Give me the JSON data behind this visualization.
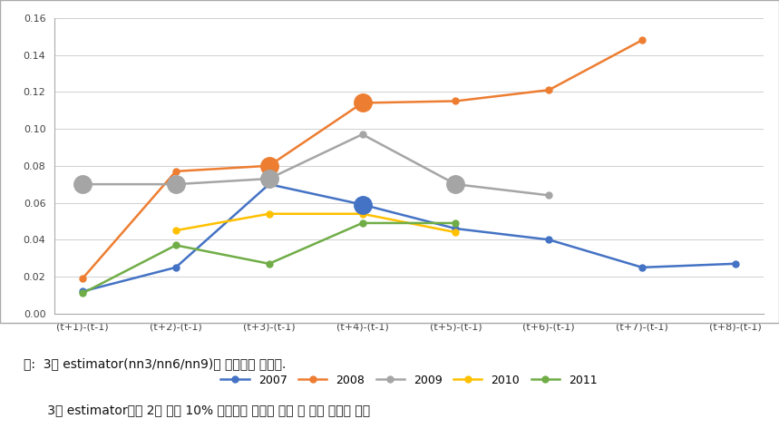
{
  "x_labels": [
    "(t+1)-(t-1)",
    "(t+2)-(t-1)",
    "(t+3)-(t-1)",
    "(t+4)-(t-1)",
    "(t+5)-(t-1)",
    "(t+6)-(t-1)",
    "(t+7)-(t-1)",
    "(t+8)-(t-1)"
  ],
  "series": {
    "2007": {
      "values": [
        0.012,
        0.025,
        0.07,
        0.059,
        0.046,
        0.04,
        0.025,
        0.027
      ],
      "color": "#4472C4",
      "large_markers": [
        3
      ]
    },
    "2008": {
      "values": [
        0.019,
        0.077,
        0.08,
        0.114,
        0.115,
        0.121,
        0.148,
        null
      ],
      "color": "#ED7D31",
      "large_markers": [
        2,
        3
      ]
    },
    "2009": {
      "values": [
        0.07,
        0.07,
        0.073,
        0.097,
        0.07,
        0.064,
        null,
        null
      ],
      "color": "#A5A5A5",
      "large_markers": [
        0,
        1,
        2,
        4
      ]
    },
    "2010": {
      "values": [
        null,
        0.045,
        0.054,
        0.054,
        0.044,
        null,
        null,
        null
      ],
      "color": "#FFC000",
      "large_markers": []
    },
    "2011": {
      "values": [
        0.011,
        0.037,
        0.027,
        0.049,
        0.049,
        null,
        null,
        null
      ],
      "color": "#70AD47",
      "large_markers": []
    }
  },
  "ylim": [
    0,
    0.16
  ],
  "yticks": [
    0,
    0.02,
    0.04,
    0.06,
    0.08,
    0.1,
    0.12,
    0.14,
    0.16
  ],
  "legend_order": [
    "2007",
    "2008",
    "2009",
    "2010",
    "2011"
  ],
  "note_line1": "주:  3개 estimator(nn3/nn6/nn9)의 평균치를 나타냄.",
  "note_line2": "      3개 estimator에서 2개 이상 10% 수준에서 유의할 경우 큰 원형 점으로 표시",
  "background_color": "#FFFFFF",
  "note_background": "#F2F2F2",
  "grid_color": "#D0D0D0",
  "small_marker_size": 5,
  "large_marker_size": 14,
  "linewidth": 1.8
}
